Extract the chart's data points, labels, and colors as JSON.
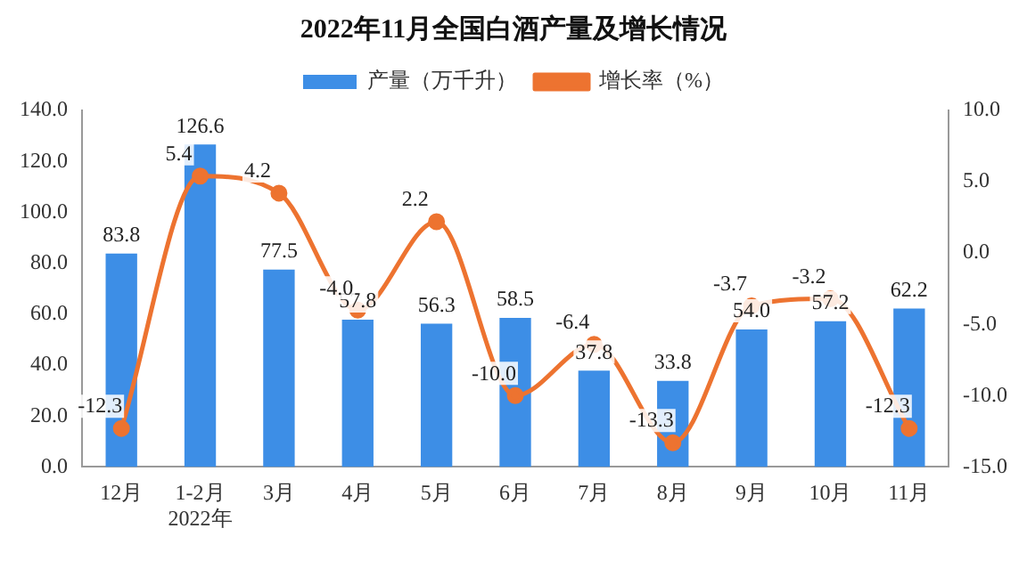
{
  "chart_data": {
    "type": "bar",
    "title": "2022年11月全国白酒产量及增长情况",
    "categories": [
      "12月",
      "1-2月\n2022年",
      "3月",
      "4月",
      "5月",
      "6月",
      "7月",
      "8月",
      "9月",
      "10月",
      "11月"
    ],
    "series": [
      {
        "name": "产量（万千升）",
        "color": "#3d8ee6",
        "values": [
          83.8,
          126.6,
          77.5,
          57.8,
          56.3,
          58.5,
          37.8,
          33.8,
          54.0,
          57.2,
          62.2
        ],
        "value_labels": [
          "83.8",
          "126.6",
          "77.5",
          "57.8",
          "56.3",
          "58.5",
          "37.8",
          "33.8",
          "54.0",
          "57.2",
          "62.2"
        ]
      },
      {
        "name": "增长率（%）",
        "type": "line",
        "axis": "y2",
        "color": "#ed7330",
        "values": [
          -12.3,
          5.4,
          4.2,
          -4.0,
          2.2,
          -10.0,
          -6.4,
          -13.3,
          -3.7,
          -3.2,
          -12.3
        ],
        "value_labels": [
          "-12.3",
          "5.4",
          "4.2",
          "-4.0",
          "2.2",
          "-10.0",
          "-6.4",
          "-13.3",
          "-3.7",
          "-3.2",
          "-12.3"
        ]
      }
    ],
    "ylim": [
      0,
      140
    ],
    "yticks": [
      {
        "value": 0,
        "label": "0.0"
      },
      {
        "value": 20,
        "label": "20.0"
      },
      {
        "value": 40,
        "label": "40.0"
      },
      {
        "value": 60,
        "label": "60.0"
      },
      {
        "value": 80,
        "label": "80.0"
      },
      {
        "value": 100,
        "label": "100.0"
      },
      {
        "value": 120,
        "label": "120.0"
      },
      {
        "value": 140,
        "label": "140.0"
      }
    ],
    "y2lim": [
      -15,
      10
    ],
    "y2ticks": [
      {
        "value": -15,
        "label": "-15.0"
      },
      {
        "value": -10,
        "label": "-10.0"
      },
      {
        "value": -5,
        "label": "-5.0"
      },
      {
        "value": 0,
        "label": "0.0"
      },
      {
        "value": 5,
        "label": "5.0"
      },
      {
        "value": 10,
        "label": "10.0"
      }
    ],
    "grid": false,
    "legend": "top",
    "marker": "circle",
    "line_style": "solid"
  }
}
